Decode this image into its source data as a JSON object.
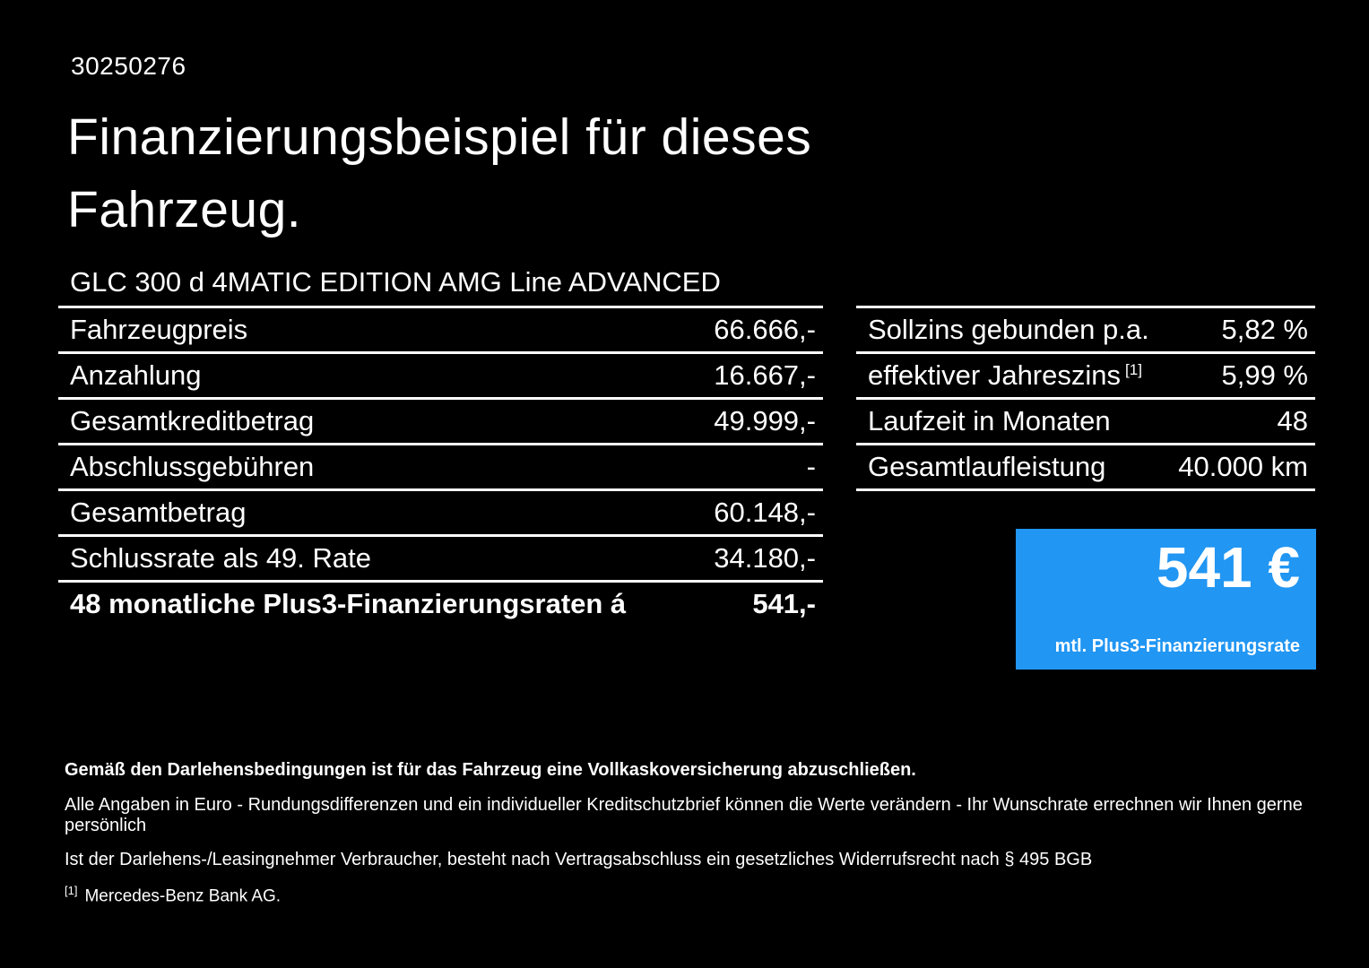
{
  "page": {
    "doc_id": "30250276",
    "title_line1": "Finanzierungsbeispiel für dieses",
    "title_line2": "Fahrzeug.",
    "vehicle_name": "GLC 300 d 4MATIC EDITION AMG Line ADVANCED"
  },
  "left_table": {
    "rows": [
      {
        "label": "Fahrzeugpreis",
        "value": "66.666,-"
      },
      {
        "label": "Anzahlung",
        "value": "16.667,-"
      },
      {
        "label": "Gesamtkreditbetrag",
        "value": "49.999,-"
      },
      {
        "label": "Abschlussgebühren",
        "value": "-"
      },
      {
        "label": "Gesamtbetrag",
        "value": "60.148,-"
      },
      {
        "label": "Schlussrate als 49. Rate",
        "value": "34.180,-"
      },
      {
        "label": "48 monatliche Plus3-Finanzierungsraten á",
        "value": "541,-"
      }
    ]
  },
  "right_table": {
    "rows": [
      {
        "label": "Sollzins gebunden p.a.",
        "value": "5,82 %"
      },
      {
        "label": "effektiver Jahreszins",
        "sup": "[1]",
        "value": "5,99 %"
      },
      {
        "label": "Laufzeit in Monaten",
        "value": "48"
      },
      {
        "label": "Gesamtlaufleistung",
        "value": "40.000 km"
      }
    ]
  },
  "rate_box": {
    "amount": "541 €",
    "caption": "mtl. Plus3-Finanzierungsrate",
    "background_color": "#2196f3"
  },
  "footer": {
    "line1": "Gemäß den Darlehensbedingungen ist für das Fahrzeug eine Vollkaskoversicherung abzuschließen.",
    "line2": "Alle Angaben in Euro - Rundungsdifferenzen und ein individueller Kreditschutzbrief können die Werte verändern - Ihr Wunschrate errechnen wir Ihnen gerne persönlich",
    "line3": "Ist der Darlehens-/Leasingnehmer Verbraucher, besteht nach Vertragsabschluss ein gesetzliches Widerrufsrecht nach § 495 BGB",
    "footnote_marker": "[1]",
    "footnote_text": "Mercedes-Benz Bank AG."
  }
}
